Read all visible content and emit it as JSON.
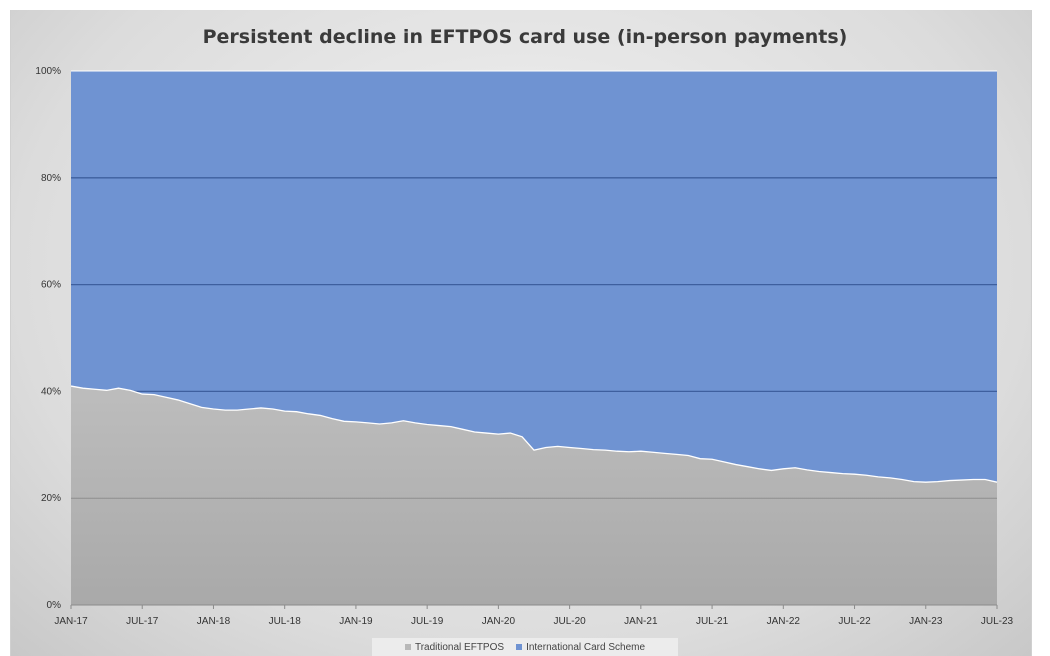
{
  "chart_data": {
    "type": "area",
    "stacked": "percent",
    "title": "Persistent decline in EFTPOS card use (in-person payments)",
    "xlabel": "",
    "ylabel": "",
    "ylim": [
      0,
      100
    ],
    "y_ticks": [
      "0%",
      "20%",
      "40%",
      "60%",
      "80%",
      "100%"
    ],
    "x_tick_labels": [
      "JAN-17",
      "JUL-17",
      "JAN-18",
      "JUL-18",
      "JAN-19",
      "JUL-19",
      "JAN-20",
      "JUL-20",
      "JAN-21",
      "JUL-21",
      "JAN-22",
      "JUL-22",
      "JAN-23",
      "JUL-23"
    ],
    "grid": true,
    "legend_position": "bottom",
    "x_start": "JAN-17",
    "x_end": "JUL-23",
    "series": [
      {
        "name": "Traditional EFTPOS",
        "color": "#b8b8b8",
        "values": [
          41.0,
          40.6,
          40.4,
          40.2,
          40.6,
          40.2,
          39.5,
          39.4,
          38.9,
          38.4,
          37.7,
          37.0,
          36.7,
          36.5,
          36.5,
          36.7,
          36.9,
          36.7,
          36.3,
          36.2,
          35.8,
          35.5,
          34.9,
          34.4,
          34.3,
          34.1,
          33.9,
          34.1,
          34.5,
          34.1,
          33.8,
          33.6,
          33.4,
          32.9,
          32.4,
          32.2,
          32.0,
          32.2,
          31.5,
          29.0,
          29.5,
          29.7,
          29.5,
          29.3,
          29.1,
          29.0,
          28.8,
          28.7,
          28.8,
          28.6,
          28.4,
          28.2,
          28.0,
          27.4,
          27.3,
          26.8,
          26.3,
          25.9,
          25.5,
          25.2,
          25.5,
          25.7,
          25.3,
          25.0,
          24.8,
          24.6,
          24.5,
          24.3,
          24.0,
          23.8,
          23.5,
          23.1,
          23.0,
          23.1,
          23.3,
          23.4,
          23.5,
          23.5,
          23.0
        ]
      },
      {
        "name": "International Card Scheme",
        "color": "#6f93d2",
        "values": [
          59.0,
          59.4,
          59.6,
          59.8,
          59.4,
          59.8,
          60.5,
          60.6,
          61.1,
          61.6,
          62.3,
          63.0,
          63.3,
          63.5,
          63.5,
          63.3,
          63.1,
          63.3,
          63.7,
          63.8,
          64.2,
          64.5,
          65.1,
          65.6,
          65.7,
          65.9,
          66.1,
          65.9,
          65.5,
          65.9,
          66.2,
          66.4,
          66.6,
          67.1,
          67.6,
          67.8,
          68.0,
          67.8,
          68.5,
          71.0,
          70.5,
          70.3,
          70.5,
          70.7,
          70.9,
          71.0,
          71.2,
          71.3,
          71.2,
          71.4,
          71.6,
          71.8,
          72.0,
          72.6,
          72.7,
          73.2,
          73.7,
          74.1,
          74.5,
          74.8,
          74.5,
          74.3,
          74.7,
          75.0,
          75.2,
          75.4,
          75.5,
          75.7,
          76.0,
          76.2,
          76.5,
          76.9,
          77.0,
          76.9,
          76.7,
          76.6,
          76.5,
          76.5,
          77.0
        ]
      }
    ]
  },
  "colors": {
    "plot_blue": "#6f93d2",
    "plot_gray": "#b8b8b8",
    "gridline": "#3e5f9e"
  }
}
